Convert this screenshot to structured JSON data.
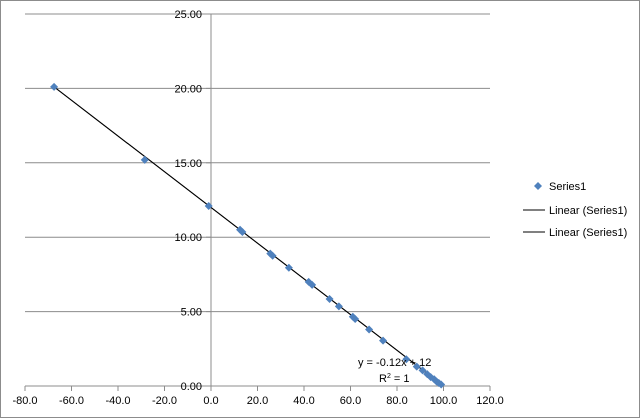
{
  "chart_data": {
    "type": "scatter",
    "title": "",
    "xlabel": "",
    "ylabel": "",
    "xlim": [
      -80,
      120
    ],
    "ylim": [
      0,
      25
    ],
    "x_ticks": [
      "-80.0",
      "-60.0",
      "-40.0",
      "-20.0",
      "0.0",
      "20.0",
      "40.0",
      "60.0",
      "80.0",
      "100.0",
      "120.0"
    ],
    "y_ticks": [
      "0.00",
      "5.00",
      "10.00",
      "15.00",
      "20.00",
      "25.00"
    ],
    "x_tick_values": [
      -80,
      -60,
      -40,
      -20,
      0,
      20,
      40,
      60,
      80,
      100,
      120
    ],
    "y_tick_values": [
      0,
      5,
      10,
      15,
      20,
      25
    ],
    "grid": "horizontal major gridlines",
    "legend_position": "right",
    "series": [
      {
        "name": "Series1",
        "marker": "diamond",
        "color": "#4f81bd",
        "points": [
          [
            -67.5,
            20.1
          ],
          [
            -28.5,
            15.2
          ],
          [
            -1.0,
            12.1
          ],
          [
            12.5,
            10.5
          ],
          [
            13.5,
            10.35
          ],
          [
            25.5,
            8.9
          ],
          [
            26.5,
            8.75
          ],
          [
            33.5,
            7.95
          ],
          [
            42.0,
            7.0
          ],
          [
            43.5,
            6.8
          ],
          [
            51.0,
            5.85
          ],
          [
            55.0,
            5.35
          ],
          [
            61.0,
            4.65
          ],
          [
            62.0,
            4.5
          ],
          [
            68.0,
            3.8
          ],
          [
            74.0,
            3.05
          ],
          [
            84.0,
            1.8
          ],
          [
            88.5,
            1.3
          ],
          [
            91.0,
            1.05
          ],
          [
            93.0,
            0.8
          ],
          [
            94.5,
            0.6
          ],
          [
            96.0,
            0.45
          ],
          [
            97.0,
            0.3
          ],
          [
            98.0,
            0.2
          ],
          [
            99.0,
            0.1
          ]
        ]
      }
    ],
    "trendlines": [
      {
        "name": "Linear (Series1)",
        "color": "#000000",
        "x_range": [
          -67.5,
          99.0
        ],
        "slope": -0.12,
        "intercept": 12
      },
      {
        "name": "Linear (Series1)",
        "color": "#000000",
        "x_range": [
          -67.5,
          99.0
        ],
        "slope": -0.12,
        "intercept": 12
      }
    ],
    "annotations": {
      "equation": "y = -0.12x + 12",
      "r_squared_label": "R",
      "r_squared_sup": "2",
      "r_squared_value": " = 1"
    },
    "legend": [
      {
        "label": "Series1",
        "kind": "marker"
      },
      {
        "label": "Linear (Series1)",
        "kind": "line"
      },
      {
        "label": "Linear (Series1)",
        "kind": "line"
      }
    ]
  }
}
